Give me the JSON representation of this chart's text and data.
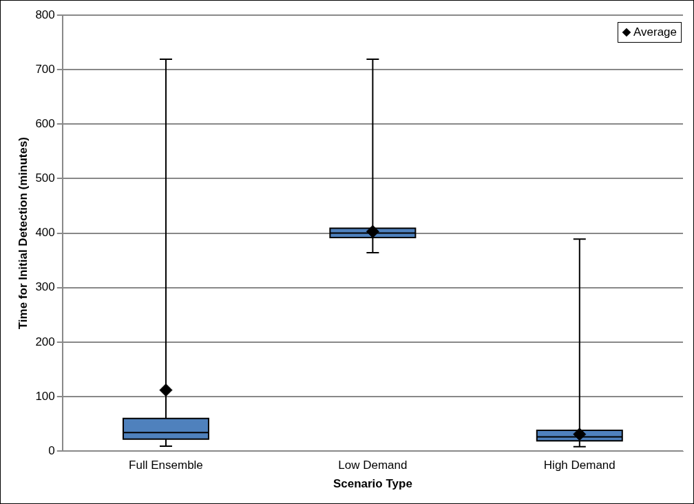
{
  "chart_data": {
    "type": "box",
    "xlabel": "Scenario Type",
    "ylabel": "Time for Initial Detection (minutes)",
    "categories": [
      "Full Ensemble",
      "Low Demand",
      "High Demand"
    ],
    "color": "#4f81bd",
    "boxes": [
      {
        "low": 9,
        "q1": 22,
        "median": 34,
        "q3": 60,
        "high": 719
      },
      {
        "low": 364,
        "q1": 392,
        "median": 400,
        "q3": 409,
        "high": 719
      },
      {
        "low": 8,
        "q1": 19,
        "median": 26,
        "q3": 38,
        "high": 389
      }
    ],
    "series": [
      {
        "name": "Average",
        "type": "scatter",
        "color": "#000000",
        "x": [
          "Full Ensemble",
          "Low Demand",
          "High Demand"
        ],
        "values": [
          112,
          403,
          31
        ]
      }
    ],
    "marker": "diamond",
    "legend": "top right",
    "grid": "y",
    "ylim": [
      0,
      800
    ],
    "yticks": [
      0,
      100,
      200,
      300,
      400,
      500,
      600,
      700,
      800
    ]
  }
}
